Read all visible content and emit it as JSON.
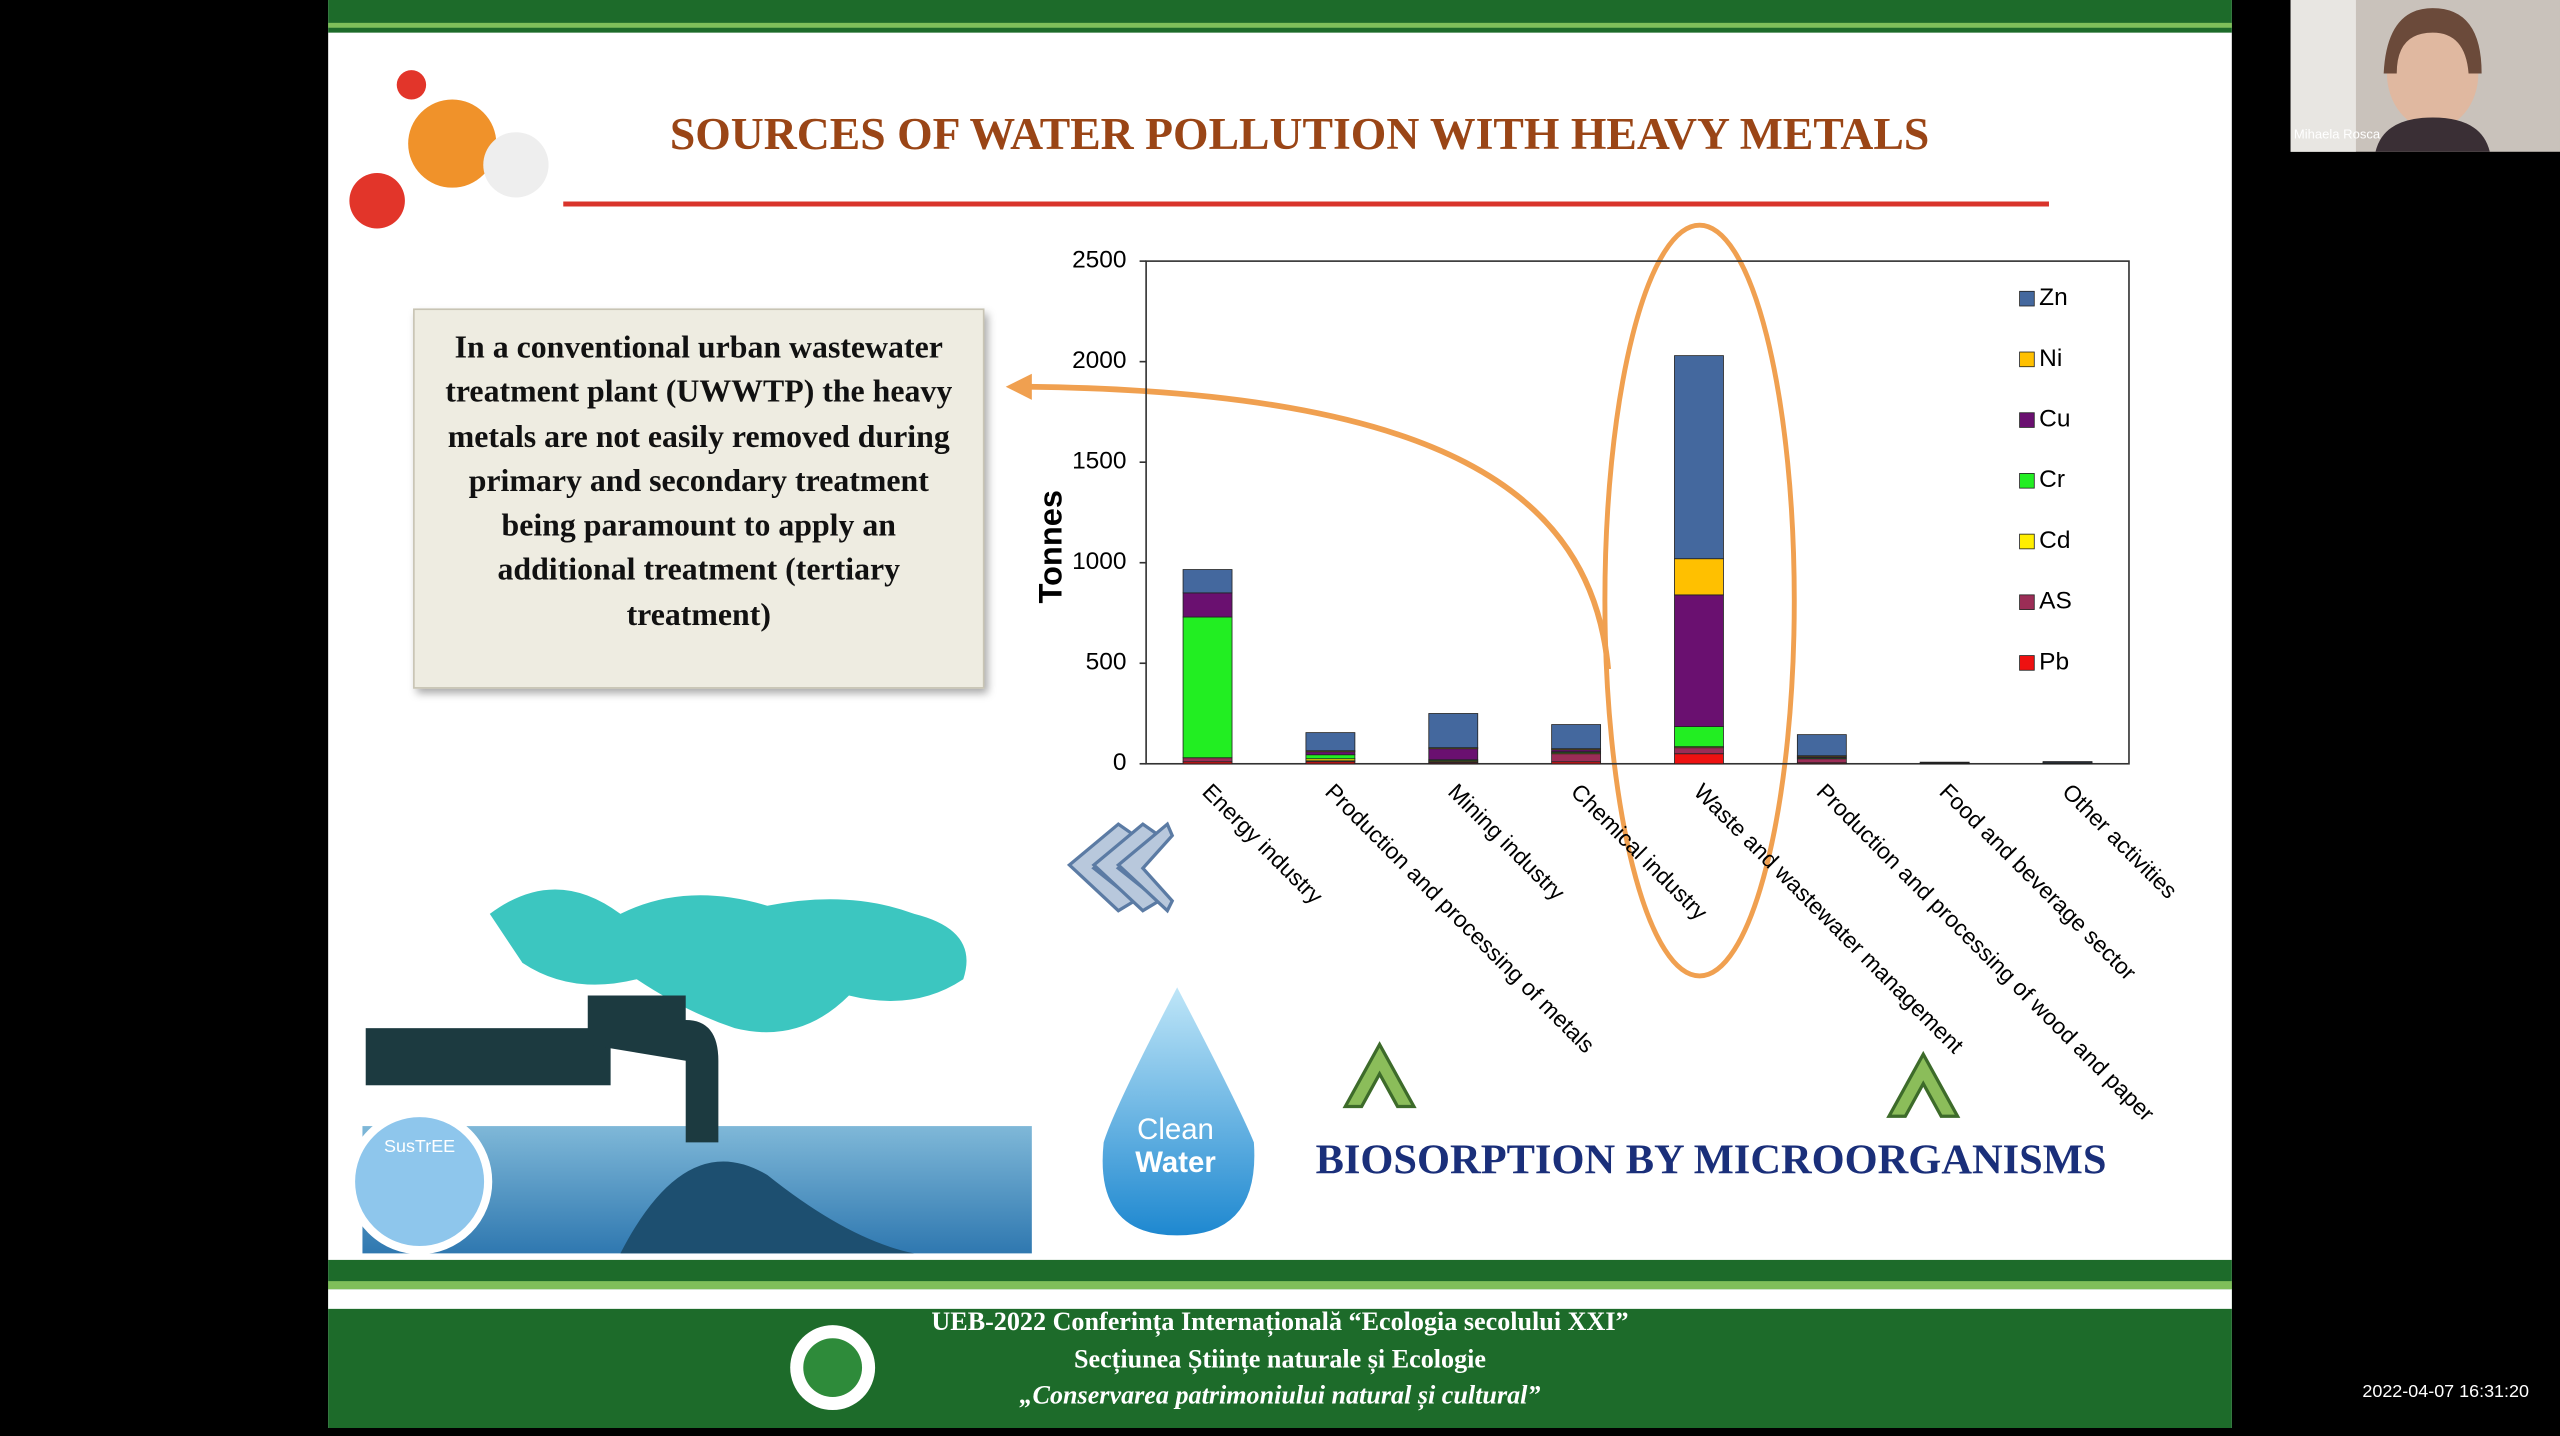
{
  "title": "SOURCES OF WATER POLLUTION WITH HEAVY METALS",
  "info_box": "In a conventional urban wastewater treatment plant (UWWTP) the heavy metals are not easily removed during primary and secondary treatment being paramount to apply an additional treatment (tertiary treatment)",
  "chart_data": {
    "type": "stacked-bar",
    "y_label": "Tonnes",
    "categories": [
      "Energy industry",
      "Production and processing of metals",
      "Mining industry",
      "Chemical industry",
      "Waste and wastewater management",
      "Production and processing of wood and paper",
      "Food and beverage sector",
      "Other activities"
    ],
    "series": [
      {
        "name": "Zn",
        "color": "#44689e",
        "values": [
          116,
          90,
          170,
          120,
          1010,
          105,
          4,
          5
        ]
      },
      {
        "name": "Ni",
        "color": "#ffc000",
        "values": [
          0,
          5,
          5,
          5,
          180,
          5,
          0,
          1
        ]
      },
      {
        "name": "Cu",
        "color": "#6a1070",
        "values": [
          120,
          15,
          55,
          10,
          655,
          5,
          1,
          2
        ]
      },
      {
        "name": "Cr",
        "color": "#22ee22",
        "values": [
          700,
          20,
          5,
          5,
          100,
          5,
          1,
          1
        ]
      },
      {
        "name": "Cd",
        "color": "#ffee00",
        "values": [
          0,
          10,
          5,
          5,
          5,
          0,
          0,
          0
        ]
      },
      {
        "name": "AS",
        "color": "#9b2d56",
        "values": [
          20,
          5,
          5,
          40,
          30,
          20,
          1,
          1
        ]
      },
      {
        "name": "Pb",
        "color": "#ee1111",
        "values": [
          10,
          10,
          5,
          10,
          50,
          5,
          1,
          1
        ]
      }
    ],
    "ylim": [
      0,
      2500
    ],
    "yticks": [
      0,
      500,
      1000,
      1500,
      2000,
      2500
    ],
    "legend": "upper right",
    "grid": false
  },
  "drop_label": [
    "Clean",
    "Water"
  ],
  "banner": "BIOSORPTION BY MICROORGANISMS",
  "logo": "SusTrEE",
  "footer": [
    "UEB-2022 Conferința Internațională “Ecologia secolului XXI”",
    "Secțiunea Științe naturale și Ecologie",
    "„Conservarea patrimoniului natural și cultural”"
  ],
  "participant": "Mihaela Rosca",
  "timestamp": "2022-04-07 16:31:20"
}
